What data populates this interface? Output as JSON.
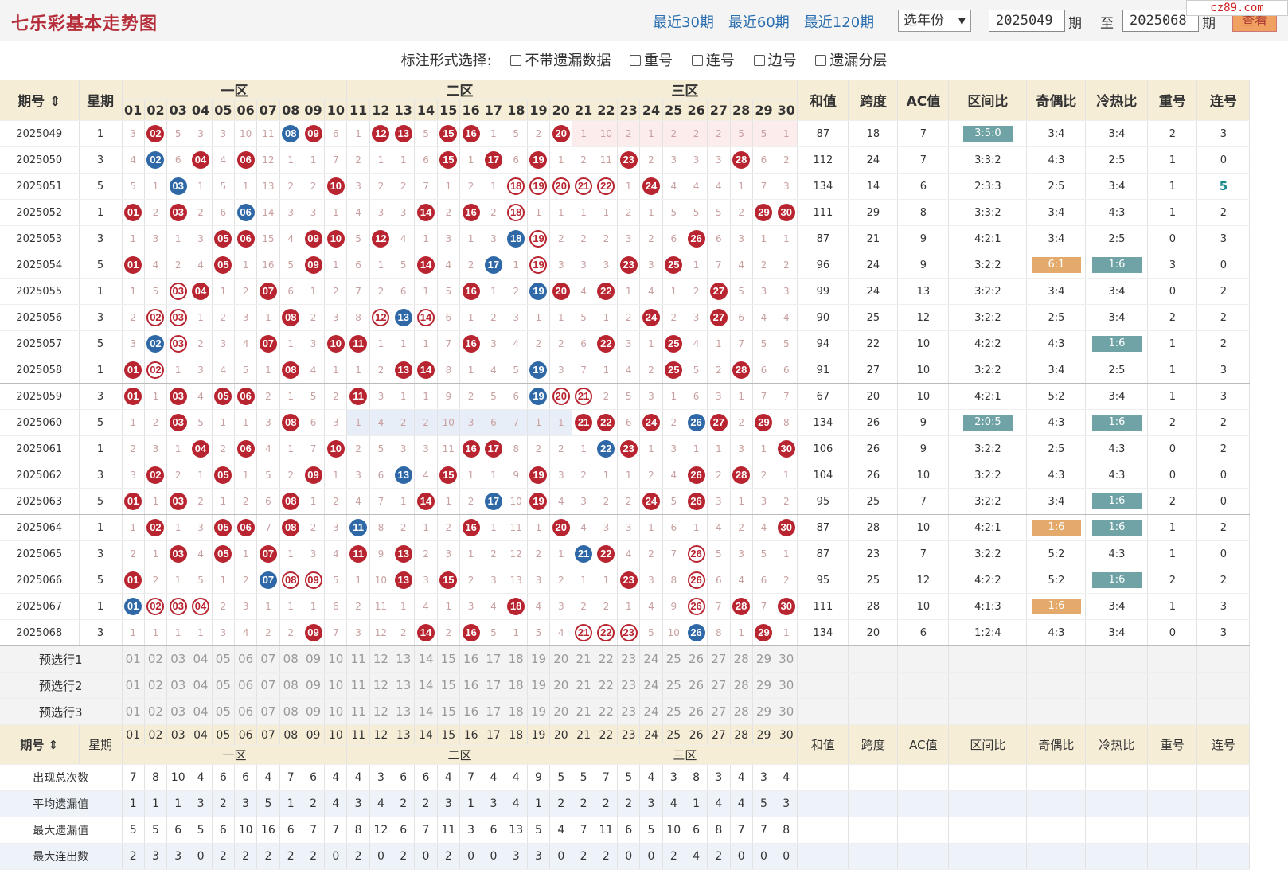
{
  "header": {
    "title": "七乐彩基本走势图",
    "links": [
      "最近30期",
      "最近60期",
      "最近120期"
    ],
    "year_select": "选年份",
    "from_issue": "2025049",
    "period_label": "期",
    "to_label": "至",
    "to_issue": "2025068",
    "period_label2": "期",
    "view_button": "查看",
    "site_logo": "cz89.com"
  },
  "options": {
    "label": "标注形式选择:",
    "items": [
      "不带遗漏数据",
      "重号",
      "连号",
      "边号",
      "遗漏分层"
    ]
  },
  "columns": {
    "issue": "期号",
    "weekday": "星期",
    "zone1": "一区",
    "zone2": "二区",
    "zone3": "三区",
    "numbers": [
      "01",
      "02",
      "03",
      "04",
      "05",
      "06",
      "07",
      "08",
      "09",
      "10",
      "11",
      "12",
      "13",
      "14",
      "15",
      "16",
      "17",
      "18",
      "19",
      "20",
      "21",
      "22",
      "23",
      "24",
      "25",
      "26",
      "27",
      "28",
      "29",
      "30"
    ],
    "stats": [
      "和值",
      "跨度",
      "AC值",
      "区间比",
      "奇偶比",
      "冷热比",
      "重号",
      "连号"
    ]
  },
  "rows": [
    {
      "issue": "2025049",
      "wd": "1",
      "c": [
        "3",
        "r02",
        "5",
        "3",
        "3",
        "10",
        "11",
        "b08",
        "r09",
        "6",
        "1",
        "r12",
        "r13",
        "5",
        "r15",
        "r16",
        "1",
        "5",
        "2",
        "r20",
        "1",
        "10",
        "2",
        "1",
        "2",
        "2",
        "2",
        "5",
        "5",
        "1"
      ],
      "s": [
        "87",
        "18",
        "7",
        "3:5:0",
        "3:4",
        "3:4",
        "2",
        "3"
      ],
      "tag": {
        "3": "t"
      }
    },
    {
      "issue": "2025050",
      "wd": "3",
      "c": [
        "4",
        "b02",
        "6",
        "r04",
        "4",
        "r06",
        "12",
        "1",
        "1",
        "7",
        "2",
        "1",
        "1",
        "6",
        "r15",
        "1",
        "r17",
        "6",
        "r19",
        "1",
        "2",
        "11",
        "r23",
        "2",
        "3",
        "3",
        "3",
        "r28",
        "6",
        "2"
      ],
      "s": [
        "112",
        "24",
        "7",
        "3:3:2",
        "4:3",
        "2:5",
        "1",
        "0"
      ]
    },
    {
      "issue": "2025051",
      "wd": "5",
      "c": [
        "5",
        "1",
        "b03",
        "1",
        "5",
        "1",
        "13",
        "2",
        "2",
        "r10",
        "3",
        "2",
        "2",
        "7",
        "1",
        "2",
        "1",
        "o18",
        "o19",
        "o20",
        "o21",
        "o22",
        "1",
        "r24",
        "4",
        "4",
        "4",
        "1",
        "7",
        "3"
      ],
      "s": [
        "134",
        "14",
        "6",
        "2:3:3",
        "2:5",
        "3:4",
        "1",
        "5"
      ]
    },
    {
      "issue": "2025052",
      "wd": "1",
      "c": [
        "r01",
        "2",
        "r03",
        "2",
        "6",
        "b06",
        "14",
        "3",
        "3",
        "1",
        "4",
        "3",
        "3",
        "r14",
        "2",
        "r16",
        "2",
        "o18",
        "1",
        "1",
        "1",
        "1",
        "2",
        "1",
        "5",
        "5",
        "5",
        "2",
        "r29",
        "r30"
      ],
      "s": [
        "111",
        "29",
        "8",
        "3:3:2",
        "3:4",
        "4:3",
        "1",
        "2"
      ]
    },
    {
      "issue": "2025053",
      "wd": "3",
      "c": [
        "1",
        "3",
        "1",
        "3",
        "r05",
        "r06",
        "15",
        "4",
        "r09",
        "r10",
        "5",
        "r12",
        "4",
        "1",
        "3",
        "1",
        "3",
        "b18",
        "o19",
        "2",
        "2",
        "2",
        "3",
        "2",
        "6",
        "r26",
        "6",
        "3",
        "1",
        "1"
      ],
      "s": [
        "87",
        "21",
        "9",
        "4:2:1",
        "3:4",
        "2:5",
        "0",
        "3"
      ],
      "sep": true
    },
    {
      "issue": "2025054",
      "wd": "5",
      "c": [
        "r01",
        "4",
        "2",
        "4",
        "r05",
        "1",
        "16",
        "5",
        "r09",
        "1",
        "6",
        "1",
        "5",
        "r14",
        "4",
        "2",
        "b17",
        "1",
        "o19",
        "3",
        "3",
        "3",
        "r23",
        "3",
        "r25",
        "1",
        "7",
        "4",
        "2",
        "2"
      ],
      "s": [
        "96",
        "24",
        "9",
        "3:2:2",
        "6:1",
        "1:6",
        "3",
        "0"
      ],
      "tag": {
        "4": "g",
        "5": "t"
      }
    },
    {
      "issue": "2025055",
      "wd": "1",
      "c": [
        "1",
        "5",
        "o03",
        "r04",
        "1",
        "2",
        "r07",
        "6",
        "1",
        "2",
        "7",
        "2",
        "6",
        "1",
        "5",
        "r16",
        "1",
        "2",
        "b19",
        "r20",
        "4",
        "r22",
        "1",
        "4",
        "1",
        "2",
        "r27",
        "5",
        "3",
        "3"
      ],
      "s": [
        "99",
        "24",
        "13",
        "3:2:2",
        "3:4",
        "3:4",
        "0",
        "2"
      ]
    },
    {
      "issue": "2025056",
      "wd": "3",
      "c": [
        "2",
        "o02",
        "o03",
        "1",
        "2",
        "3",
        "1",
        "r08",
        "2",
        "3",
        "8",
        "o12",
        "b13",
        "o14",
        "6",
        "1",
        "2",
        "3",
        "1",
        "1",
        "5",
        "1",
        "2",
        "r24",
        "2",
        "3",
        "r27",
        "6",
        "4",
        "4"
      ],
      "s": [
        "90",
        "25",
        "12",
        "3:2:2",
        "2:5",
        "3:4",
        "2",
        "2"
      ]
    },
    {
      "issue": "2025057",
      "wd": "5",
      "c": [
        "3",
        "b02",
        "o03",
        "2",
        "3",
        "4",
        "r07",
        "1",
        "3",
        "r10",
        "r11",
        "1",
        "1",
        "1",
        "7",
        "r16",
        "3",
        "4",
        "2",
        "2",
        "6",
        "r22",
        "3",
        "1",
        "r25",
        "4",
        "1",
        "7",
        "5",
        "5"
      ],
      "s": [
        "94",
        "22",
        "10",
        "4:2:2",
        "4:3",
        "1:6",
        "1",
        "2"
      ],
      "tag": {
        "5": "t"
      }
    },
    {
      "issue": "2025058",
      "wd": "1",
      "c": [
        "r01",
        "o02",
        "1",
        "3",
        "4",
        "5",
        "1",
        "r08",
        "4",
        "1",
        "1",
        "2",
        "r13",
        "r14",
        "8",
        "1",
        "4",
        "5",
        "b19",
        "3",
        "7",
        "1",
        "4",
        "2",
        "r25",
        "5",
        "2",
        "r28",
        "6",
        "6"
      ],
      "s": [
        "91",
        "27",
        "10",
        "3:2:2",
        "3:4",
        "2:5",
        "1",
        "3"
      ],
      "sep": true
    },
    {
      "issue": "2025059",
      "wd": "3",
      "c": [
        "r01",
        "1",
        "r03",
        "4",
        "r05",
        "r06",
        "2",
        "1",
        "5",
        "2",
        "r11",
        "3",
        "1",
        "1",
        "9",
        "2",
        "5",
        "6",
        "b19",
        "o20",
        "o21",
        "2",
        "5",
        "3",
        "1",
        "6",
        "3",
        "1",
        "7",
        "7"
      ],
      "s": [
        "67",
        "20",
        "10",
        "4:2:1",
        "5:2",
        "3:4",
        "1",
        "3"
      ]
    },
    {
      "issue": "2025060",
      "wd": "5",
      "c": [
        "1",
        "2",
        "r03",
        "5",
        "1",
        "1",
        "3",
        "r08",
        "6",
        "3",
        "1",
        "4",
        "2",
        "2",
        "10",
        "3",
        "6",
        "7",
        "1",
        "1",
        "r21",
        "r22",
        "6",
        "r24",
        "2",
        "b26",
        "r27",
        "2",
        "r29",
        "8"
      ],
      "s": [
        "134",
        "26",
        "9",
        "2:0:5",
        "4:3",
        "1:6",
        "2",
        "2"
      ],
      "tag": {
        "3": "t",
        "5": "t"
      },
      "z2hl": true
    },
    {
      "issue": "2025061",
      "wd": "1",
      "c": [
        "2",
        "3",
        "1",
        "r04",
        "2",
        "r06",
        "4",
        "1",
        "7",
        "r10",
        "2",
        "5",
        "3",
        "3",
        "11",
        "r16",
        "r17",
        "8",
        "2",
        "2",
        "1",
        "b22",
        "r23",
        "1",
        "3",
        "1",
        "1",
        "3",
        "1",
        "r30"
      ],
      "s": [
        "106",
        "26",
        "9",
        "3:2:2",
        "2:5",
        "4:3",
        "0",
        "2"
      ]
    },
    {
      "issue": "2025062",
      "wd": "3",
      "c": [
        "3",
        "r02",
        "2",
        "1",
        "r05",
        "1",
        "5",
        "2",
        "r09",
        "1",
        "3",
        "6",
        "b13",
        "4",
        "r15",
        "1",
        "1",
        "9",
        "r19",
        "3",
        "2",
        "1",
        "1",
        "2",
        "4",
        "r26",
        "2",
        "r28",
        "2",
        "1"
      ],
      "s": [
        "104",
        "26",
        "10",
        "3:2:2",
        "4:3",
        "4:3",
        "0",
        "0"
      ]
    },
    {
      "issue": "2025063",
      "wd": "5",
      "c": [
        "r01",
        "1",
        "r03",
        "2",
        "1",
        "2",
        "6",
        "r08",
        "1",
        "2",
        "4",
        "7",
        "1",
        "r14",
        "1",
        "2",
        "b17",
        "10",
        "r19",
        "4",
        "3",
        "2",
        "2",
        "r24",
        "5",
        "r26",
        "3",
        "1",
        "3",
        "2"
      ],
      "s": [
        "95",
        "25",
        "7",
        "3:2:2",
        "3:4",
        "1:6",
        "2",
        "0"
      ],
      "tag": {
        "5": "t"
      },
      "sep": true
    },
    {
      "issue": "2025064",
      "wd": "1",
      "c": [
        "1",
        "r02",
        "1",
        "3",
        "r05",
        "r06",
        "7",
        "r08",
        "2",
        "3",
        "b11",
        "8",
        "2",
        "1",
        "2",
        "r16",
        "1",
        "11",
        "1",
        "r20",
        "4",
        "3",
        "3",
        "1",
        "6",
        "1",
        "4",
        "2",
        "4",
        "r30"
      ],
      "s": [
        "87",
        "28",
        "10",
        "4:2:1",
        "1:6",
        "1:6",
        "1",
        "2"
      ],
      "tag": {
        "4": "g",
        "5": "t"
      }
    },
    {
      "issue": "2025065",
      "wd": "3",
      "c": [
        "2",
        "1",
        "r03",
        "4",
        "r05",
        "1",
        "r07",
        "1",
        "3",
        "4",
        "r11",
        "9",
        "r13",
        "2",
        "3",
        "1",
        "2",
        "12",
        "2",
        "1",
        "b21",
        "r22",
        "4",
        "2",
        "7",
        "o26",
        "5",
        "3",
        "5",
        "1"
      ],
      "s": [
        "87",
        "23",
        "7",
        "3:2:2",
        "5:2",
        "4:3",
        "1",
        "0"
      ]
    },
    {
      "issue": "2025066",
      "wd": "5",
      "c": [
        "r01",
        "2",
        "1",
        "5",
        "1",
        "2",
        "b07",
        "o08",
        "o09",
        "5",
        "1",
        "10",
        "r13",
        "3",
        "r15",
        "2",
        "3",
        "13",
        "3",
        "2",
        "1",
        "1",
        "r23",
        "3",
        "8",
        "o26",
        "6",
        "4",
        "6",
        "2"
      ],
      "s": [
        "95",
        "25",
        "12",
        "4:2:2",
        "5:2",
        "1:6",
        "2",
        "2"
      ],
      "tag": {
        "5": "t"
      }
    },
    {
      "issue": "2025067",
      "wd": "1",
      "c": [
        "b01",
        "o02",
        "o03",
        "o04",
        "2",
        "3",
        "1",
        "1",
        "1",
        "6",
        "2",
        "11",
        "1",
        "4",
        "1",
        "3",
        "4",
        "r18",
        "4",
        "3",
        "2",
        "2",
        "1",
        "4",
        "9",
        "o26",
        "7",
        "r28",
        "7",
        "r30"
      ],
      "s": [
        "111",
        "28",
        "10",
        "4:1:3",
        "1:6",
        "3:4",
        "1",
        "3"
      ],
      "tag": {
        "4": "g"
      }
    },
    {
      "issue": "2025068",
      "wd": "3",
      "c": [
        "1",
        "1",
        "1",
        "1",
        "3",
        "4",
        "2",
        "2",
        "r09",
        "7",
        "3",
        "12",
        "2",
        "r14",
        "2",
        "r16",
        "5",
        "1",
        "5",
        "4",
        "o21",
        "o22",
        "o23",
        "5",
        "10",
        "b26",
        "8",
        "1",
        "r29",
        "1"
      ],
      "s": [
        "134",
        "20",
        "6",
        "1:2:4",
        "4:3",
        "3:4",
        "0",
        "3"
      ],
      "sep": true
    }
  ],
  "presets": [
    "预选行1",
    "预选行2",
    "预选行3"
  ],
  "stat_rows": [
    {
      "label": "出现总次数",
      "v": [
        "7",
        "8",
        "10",
        "4",
        "6",
        "6",
        "4",
        "7",
        "6",
        "4",
        "4",
        "3",
        "6",
        "6",
        "4",
        "7",
        "4",
        "4",
        "9",
        "5",
        "5",
        "7",
        "5",
        "4",
        "3",
        "8",
        "3",
        "4",
        "3",
        "4"
      ]
    },
    {
      "label": "平均遗漏值",
      "v": [
        "1",
        "1",
        "1",
        "3",
        "2",
        "3",
        "5",
        "1",
        "2",
        "4",
        "3",
        "4",
        "2",
        "2",
        "3",
        "1",
        "3",
        "4",
        "1",
        "2",
        "2",
        "2",
        "2",
        "3",
        "4",
        "1",
        "4",
        "4",
        "5",
        "3"
      ]
    },
    {
      "label": "最大遗漏值",
      "v": [
        "5",
        "5",
        "6",
        "5",
        "6",
        "10",
        "16",
        "6",
        "7",
        "7",
        "8",
        "12",
        "6",
        "7",
        "11",
        "3",
        "6",
        "13",
        "5",
        "4",
        "7",
        "11",
        "6",
        "5",
        "10",
        "6",
        "8",
        "7",
        "7",
        "8"
      ]
    },
    {
      "label": "最大连出数",
      "v": [
        "2",
        "3",
        "3",
        "0",
        "2",
        "2",
        "2",
        "2",
        "2",
        "0",
        "2",
        "0",
        "2",
        "0",
        "2",
        "0",
        "0",
        "3",
        "3",
        "0",
        "2",
        "2",
        "0",
        "0",
        "2",
        "4",
        "2",
        "0",
        "0",
        "0"
      ]
    }
  ],
  "colors": {
    "red_ball": "#b8242f",
    "blue_ball": "#2f68a6",
    "teal_tag": "#6fa3a6",
    "gold_tag": "#e4aa6c",
    "header_bg": "#f6edd7"
  }
}
